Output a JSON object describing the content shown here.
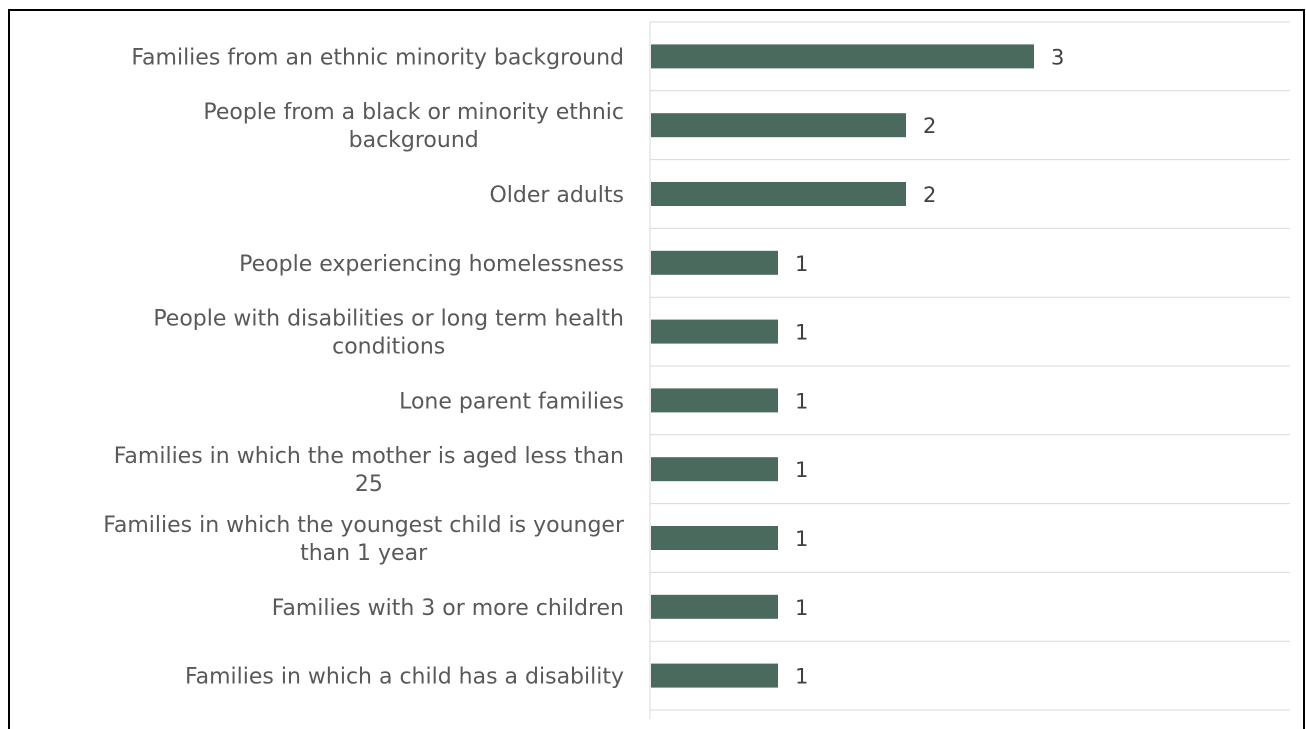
{
  "chart_data": {
    "type": "bar",
    "orientation": "horizontal",
    "title": "",
    "xlabel": "",
    "ylabel": "",
    "categories": [
      "Families from an ethnic minority background",
      "People from a black or minority ethnic background",
      "Older adults",
      "People experiencing homelessness",
      "People with disabilities or long term health conditions",
      "Lone parent families",
      "Families in which the mother is aged less than 25",
      "Families in which the youngest child is younger than 1 year",
      "Families with 3 or more children",
      "Families in which a child has a disability"
    ],
    "category_lines": [
      [
        "Families from an ethnic minority background"
      ],
      [
        "People from a black or minority ethnic",
        "background"
      ],
      [
        "Older adults"
      ],
      [
        "People experiencing homelessness"
      ],
      [
        "People with disabilities or long term health",
        "conditions"
      ],
      [
        "Lone parent families"
      ],
      [
        "Families in which the mother is aged less than",
        "25"
      ],
      [
        "Families in which the youngest child is younger",
        "than 1 year"
      ],
      [
        "Families with 3 or more children"
      ],
      [
        "Families in which a child has a disability"
      ]
    ],
    "values": [
      3,
      2,
      2,
      1,
      1,
      1,
      1,
      1,
      1,
      1
    ],
    "xlim": [
      0,
      5
    ],
    "grid": true,
    "data_labels": true,
    "legend": "none",
    "bar_color": "#4a6a5e",
    "gridline_color": "#d9d9d9"
  }
}
